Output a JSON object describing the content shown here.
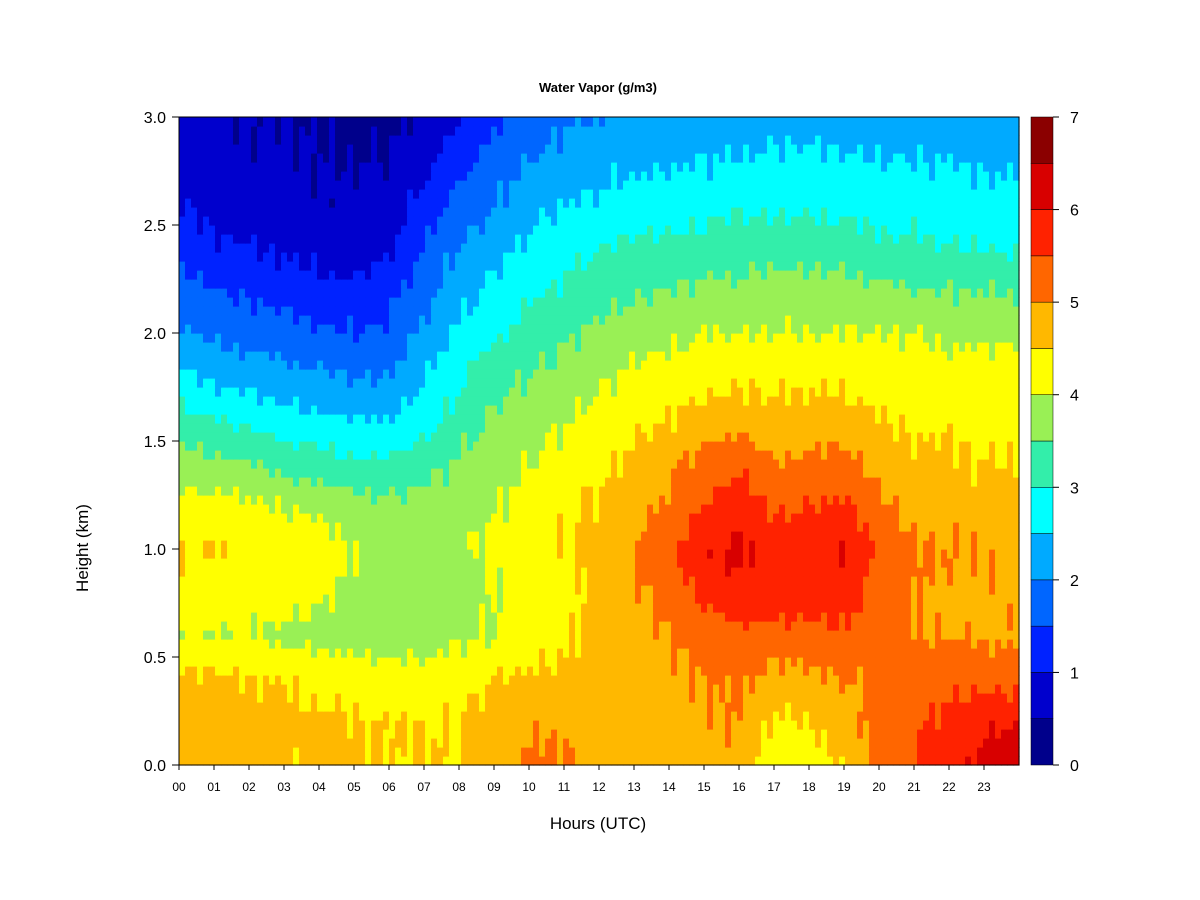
{
  "chart_data": {
    "type": "heatmap",
    "title": "Water Vapor (g/m3)",
    "xlabel": "Hours (UTC)",
    "ylabel": "Height (km)",
    "xlim": [
      0,
      24
    ],
    "ylim": [
      0.0,
      3.0
    ],
    "x_ticks": [
      "00",
      "01",
      "02",
      "03",
      "04",
      "05",
      "06",
      "07",
      "08",
      "09",
      "10",
      "11",
      "12",
      "13",
      "14",
      "15",
      "16",
      "17",
      "18",
      "19",
      "20",
      "21",
      "22",
      "23"
    ],
    "y_ticks": [
      "0.0",
      "0.5",
      "1.0",
      "1.5",
      "2.0",
      "2.5",
      "3.0"
    ],
    "colorbar": {
      "min": 0,
      "max": 7,
      "step": 0.5,
      "tick_labels": [
        "0",
        "1",
        "2",
        "3",
        "4",
        "5",
        "6",
        "7"
      ],
      "colors": [
        "#00008B",
        "#0000CD",
        "#0022FF",
        "#0066FF",
        "#00AAFF",
        "#00FFFF",
        "#33EEAA",
        "#99F055",
        "#FFFF00",
        "#FFB800",
        "#FF6600",
        "#FF2200",
        "#D80000",
        "#8B0000"
      ]
    },
    "hours": [
      0,
      1,
      2,
      3,
      4,
      5,
      6,
      7,
      8,
      9,
      10,
      11,
      12,
      13,
      14,
      15,
      16,
      17,
      18,
      19,
      20,
      21,
      22,
      23,
      24
    ],
    "heights_km": [
      0.0,
      0.2,
      0.4,
      0.6,
      0.8,
      1.0,
      1.2,
      1.4,
      1.6,
      1.8,
      2.0,
      2.2,
      2.4,
      2.6,
      2.8,
      3.0
    ],
    "values": [
      [
        4.8,
        4.7,
        4.7,
        4.6,
        4.6,
        4.6,
        4.5,
        4.5,
        4.5,
        4.8,
        5.1,
        5.1,
        4.8,
        4.7,
        4.8,
        4.8,
        4.8,
        4.2,
        4.3,
        4.5,
        5.2,
        5.5,
        5.8,
        6.2,
        6.3
      ],
      [
        4.8,
        4.7,
        4.7,
        4.6,
        4.6,
        4.5,
        4.5,
        4.5,
        4.5,
        4.7,
        4.9,
        4.9,
        4.8,
        4.8,
        4.9,
        4.9,
        5.0,
        4.4,
        4.5,
        4.7,
        5.2,
        5.4,
        5.7,
        5.9,
        6.0
      ],
      [
        4.6,
        4.6,
        4.5,
        4.5,
        4.4,
        4.3,
        4.2,
        4.2,
        4.3,
        4.5,
        4.6,
        4.6,
        4.7,
        4.8,
        4.9,
        5.0,
        5.1,
        4.8,
        4.9,
        5.0,
        5.1,
        5.2,
        5.3,
        5.3,
        5.3
      ],
      [
        4.1,
        4.0,
        4.0,
        3.9,
        3.8,
        3.7,
        3.7,
        3.8,
        3.9,
        4.0,
        4.2,
        4.4,
        4.6,
        4.8,
        5.0,
        5.2,
        5.4,
        5.3,
        5.3,
        5.4,
        5.2,
        5.0,
        5.0,
        4.9,
        4.9
      ],
      [
        4.3,
        4.3,
        4.2,
        4.2,
        4.1,
        3.9,
        3.8,
        3.8,
        3.8,
        4.0,
        4.2,
        4.4,
        4.6,
        4.9,
        5.2,
        5.6,
        5.9,
        5.8,
        5.8,
        5.8,
        5.3,
        5.0,
        4.9,
        4.9,
        4.9
      ],
      [
        4.5,
        4.5,
        4.4,
        4.3,
        4.2,
        4.0,
        3.9,
        3.9,
        3.9,
        4.1,
        4.3,
        4.5,
        4.7,
        5.0,
        5.4,
        5.9,
        6.1,
        5.8,
        5.9,
        6.0,
        5.4,
        5.1,
        5.0,
        5.0,
        4.9
      ],
      [
        4.2,
        4.2,
        4.1,
        4.0,
        3.9,
        3.7,
        3.6,
        3.7,
        3.8,
        4.0,
        4.2,
        4.4,
        4.6,
        4.8,
        5.1,
        5.5,
        5.8,
        5.4,
        5.5,
        5.6,
        5.1,
        4.8,
        4.8,
        4.7,
        4.7
      ],
      [
        3.7,
        3.6,
        3.5,
        3.3,
        3.2,
        3.1,
        3.1,
        3.3,
        3.6,
        3.8,
        4.0,
        4.2,
        4.4,
        4.6,
        4.9,
        5.2,
        5.4,
        5.0,
        5.1,
        5.2,
        4.8,
        4.6,
        4.6,
        4.5,
        4.5
      ],
      [
        3.2,
        3.0,
        2.9,
        2.7,
        2.6,
        2.5,
        2.5,
        2.8,
        3.2,
        3.6,
        3.8,
        4.0,
        4.2,
        4.4,
        4.5,
        4.7,
        4.8,
        4.6,
        4.7,
        4.7,
        4.5,
        4.4,
        4.4,
        4.3,
        4.3
      ],
      [
        2.6,
        2.4,
        2.3,
        2.2,
        2.1,
        2.0,
        2.0,
        2.5,
        2.9,
        3.3,
        3.5,
        3.7,
        3.9,
        4.1,
        4.2,
        4.3,
        4.4,
        4.4,
        4.4,
        4.4,
        4.3,
        4.3,
        4.2,
        4.2,
        4.2
      ],
      [
        2.1,
        1.9,
        1.8,
        1.7,
        1.6,
        1.5,
        1.6,
        2.1,
        2.6,
        2.9,
        3.2,
        3.4,
        3.6,
        3.8,
        3.9,
        4.0,
        4.0,
        4.0,
        4.0,
        4.0,
        4.0,
        4.0,
        3.9,
        3.9,
        3.9
      ],
      [
        1.7,
        1.5,
        1.4,
        1.3,
        1.2,
        1.1,
        1.3,
        1.8,
        2.3,
        2.6,
        2.9,
        3.1,
        3.3,
        3.4,
        3.5,
        3.6,
        3.6,
        3.7,
        3.7,
        3.7,
        3.6,
        3.5,
        3.5,
        3.5,
        3.4
      ],
      [
        1.3,
        1.1,
        1.0,
        0.9,
        0.8,
        0.7,
        0.9,
        1.5,
        2.0,
        2.3,
        2.6,
        2.8,
        3.0,
        3.1,
        3.1,
        3.2,
        3.3,
        3.3,
        3.3,
        3.2,
        3.1,
        3.1,
        3.0,
        3.0,
        2.9
      ],
      [
        1.0,
        0.8,
        0.7,
        0.7,
        0.6,
        0.6,
        0.7,
        1.2,
        1.7,
        2.0,
        2.3,
        2.5,
        2.6,
        2.7,
        2.8,
        2.8,
        2.9,
        2.9,
        2.9,
        2.9,
        2.8,
        2.8,
        2.7,
        2.7,
        2.7
      ],
      [
        0.8,
        0.7,
        0.6,
        0.6,
        0.5,
        0.5,
        0.5,
        0.8,
        1.3,
        1.7,
        2.0,
        2.2,
        2.3,
        2.4,
        2.4,
        2.5,
        2.5,
        2.6,
        2.6,
        2.6,
        2.5,
        2.5,
        2.5,
        2.4,
        2.4
      ],
      [
        0.7,
        0.6,
        0.5,
        0.5,
        0.5,
        0.4,
        0.4,
        0.6,
        1.0,
        1.4,
        1.7,
        1.9,
        2.0,
        2.1,
        2.1,
        2.2,
        2.2,
        2.3,
        2.3,
        2.2,
        2.2,
        2.2,
        2.1,
        2.1,
        2.1
      ]
    ]
  }
}
